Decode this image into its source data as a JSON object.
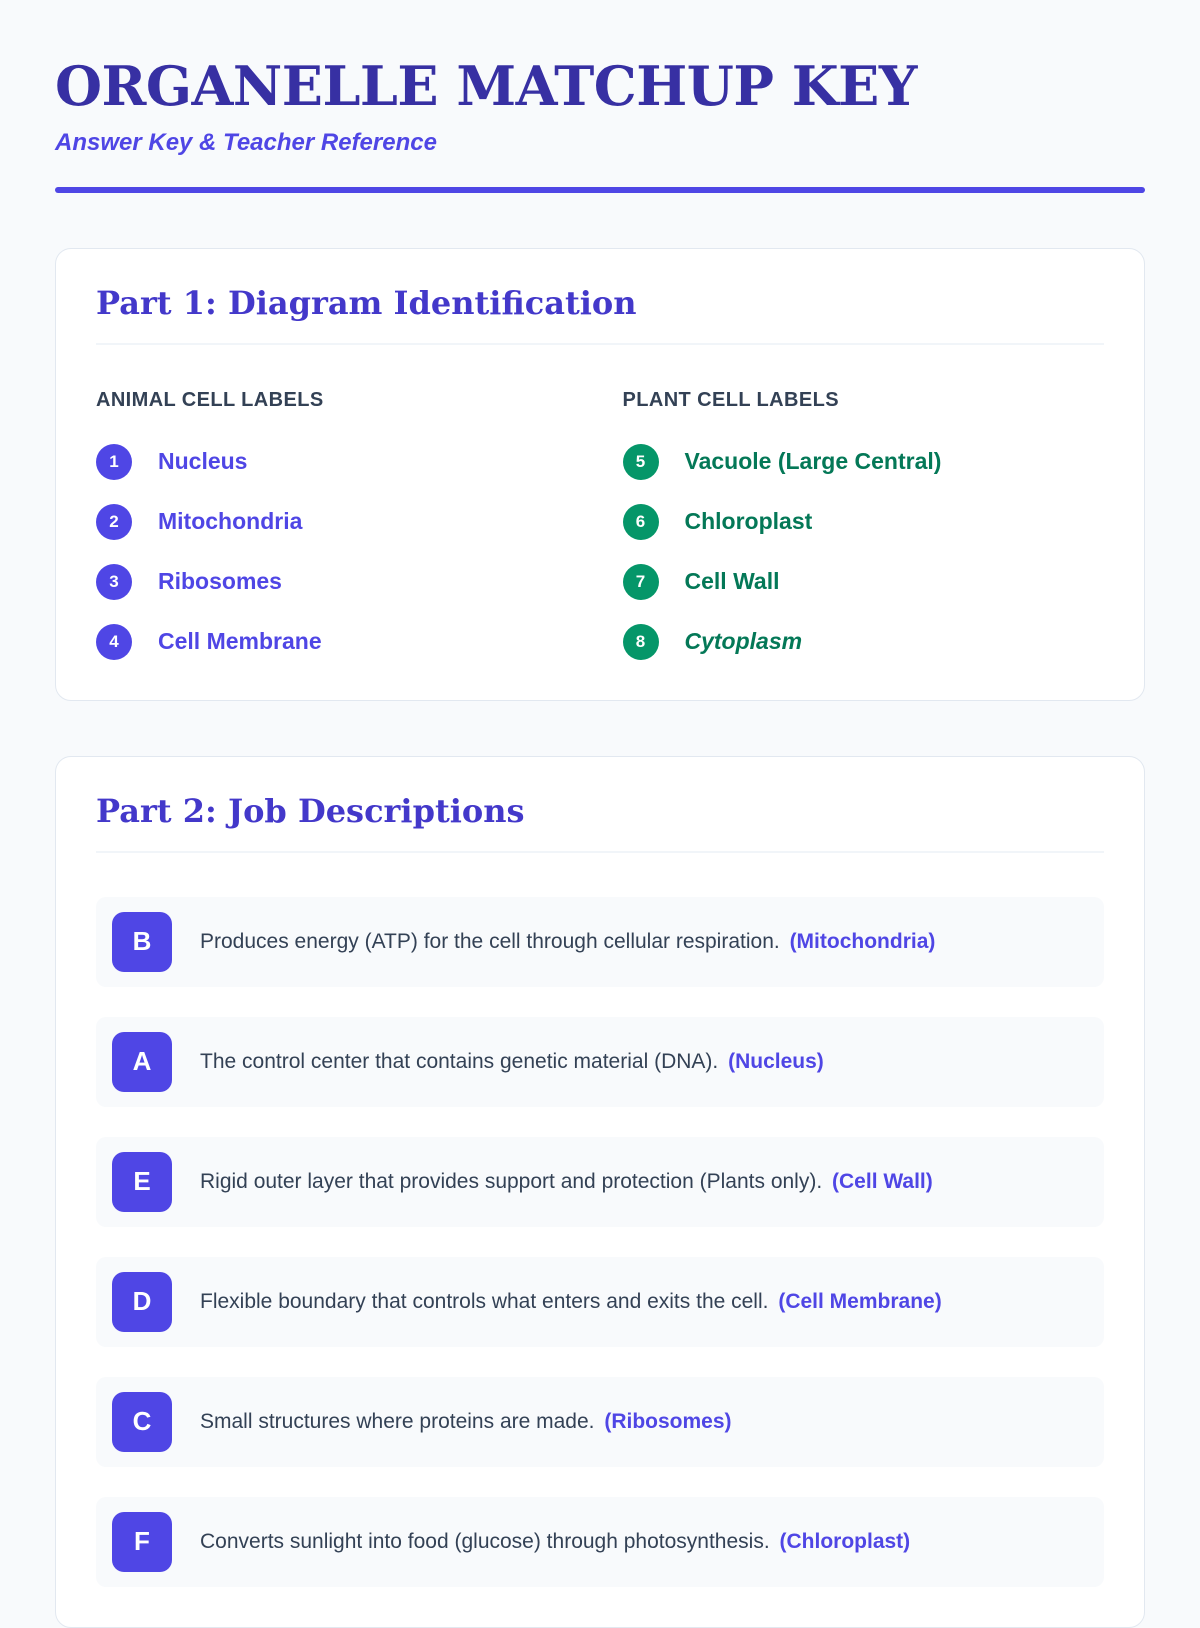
{
  "header": {
    "title": "ORGANELLE MATCHUP KEY",
    "subtitle": "Answer Key & Teacher Reference"
  },
  "theme": {
    "page_background": "#f8fafc",
    "title_color": "#3730a3",
    "accent_indigo": "#4f46e5",
    "heading_indigo": "#4338ca",
    "green": "#059669",
    "green_text": "#047857",
    "body_text": "#334155",
    "card_border": "#e2e8f0"
  },
  "part1": {
    "heading": "Part 1: Diagram Identification",
    "columns": [
      {
        "id": "animal",
        "header": "ANIMAL CELL LABELS",
        "badge_color": "#4f46e5",
        "label_color": "#4f46e5",
        "items": [
          {
            "num": "1",
            "label": "Nucleus",
            "italic": false
          },
          {
            "num": "2",
            "label": "Mitochondria",
            "italic": false
          },
          {
            "num": "3",
            "label": "Ribosomes",
            "italic": false
          },
          {
            "num": "4",
            "label": "Cell Membrane",
            "italic": false
          }
        ]
      },
      {
        "id": "plant",
        "header": "PLANT CELL LABELS",
        "badge_color": "#059669",
        "label_color": "#047857",
        "items": [
          {
            "num": "5",
            "label": "Vacuole (Large Central)",
            "italic": false
          },
          {
            "num": "6",
            "label": "Chloroplast",
            "italic": false
          },
          {
            "num": "7",
            "label": "Cell Wall",
            "italic": false
          },
          {
            "num": "8",
            "label": "Cytoplasm",
            "italic": true
          }
        ]
      }
    ]
  },
  "part2": {
    "heading": "Part 2: Job Descriptions",
    "rows": [
      {
        "letter": "B",
        "text": "Produces energy (ATP) for the cell through cellular respiration.",
        "answer": "(Mitochondria)"
      },
      {
        "letter": "A",
        "text": "The control center that contains genetic material (DNA).",
        "answer": "(Nucleus)"
      },
      {
        "letter": "E",
        "text": "Rigid outer layer that provides support and protection (Plants only).",
        "answer": "(Cell Wall)"
      },
      {
        "letter": "D",
        "text": "Flexible boundary that controls what enters and exits the cell.",
        "answer": "(Cell Membrane)"
      },
      {
        "letter": "C",
        "text": "Small structures where proteins are made.",
        "answer": "(Ribosomes)"
      },
      {
        "letter": "F",
        "text": "Converts sunlight into food (glucose) through photosynthesis.",
        "answer": "(Chloroplast)"
      }
    ]
  }
}
